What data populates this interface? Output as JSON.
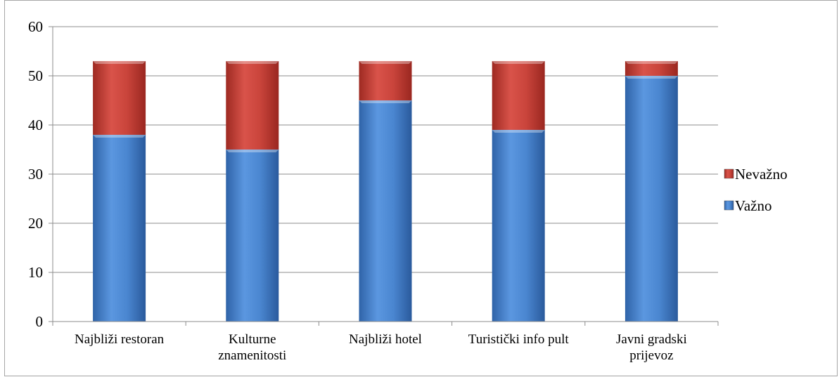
{
  "chart_data": {
    "type": "bar",
    "stacked": true,
    "categories": [
      [
        "Najbliži restoran"
      ],
      [
        "Kulturne",
        "znamenitosti"
      ],
      [
        "Najbliži hotel"
      ],
      [
        "Turistički info pult"
      ],
      [
        "Javni gradski",
        "prijevoz"
      ]
    ],
    "series": [
      {
        "name": "Važno",
        "values": [
          38,
          35,
          45,
          39,
          50
        ],
        "color": "#4a86d0"
      },
      {
        "name": "Nevažno",
        "values": [
          15,
          18,
          8,
          14,
          3
        ],
        "color": "#c0392b"
      }
    ],
    "ylim": [
      0,
      60
    ],
    "yticks": [
      0,
      10,
      20,
      30,
      40,
      50,
      60
    ],
    "grid": true,
    "legend_position": "right",
    "legend_order": [
      "Nevažno",
      "Važno"
    ],
    "title": "",
    "xlabel": "",
    "ylabel": ""
  }
}
